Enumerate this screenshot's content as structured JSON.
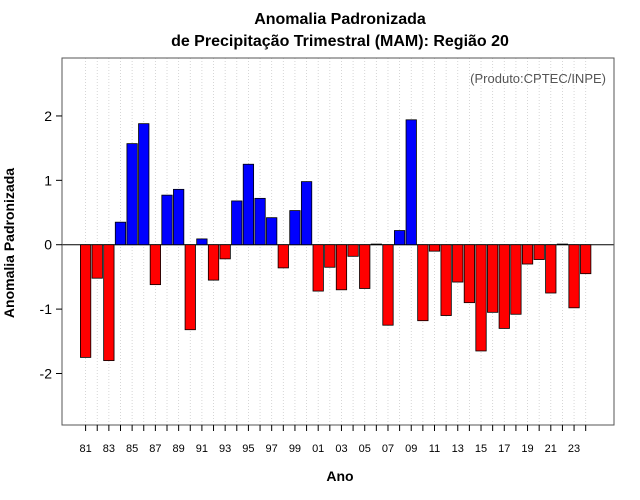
{
  "chart_data": {
    "type": "bar",
    "title_line1": "Anomalia Padronizada",
    "title_line2": "de Precipitação Trimestral (MAM): Região 20",
    "xlabel": "Ano",
    "ylabel": "Anomalia Padronizada",
    "annotation": "(Produto:CPTEC/INPE)",
    "ylim": [
      -2.8,
      2.9
    ],
    "yticks": [
      -2,
      -1,
      0,
      1,
      2
    ],
    "ytick_labels": [
      "-2",
      "-1",
      "0",
      "1",
      "2"
    ],
    "xtick_labels": [
      "81",
      "83",
      "85",
      "87",
      "89",
      "91",
      "93",
      "95",
      "97",
      "99",
      "01",
      "03",
      "05",
      "07",
      "09",
      "11",
      "13",
      "15",
      "17",
      "19",
      "21",
      "23"
    ],
    "categories": [
      "1981",
      "1982",
      "1983",
      "1984",
      "1985",
      "1986",
      "1987",
      "1988",
      "1989",
      "1990",
      "1991",
      "1992",
      "1993",
      "1994",
      "1995",
      "1996",
      "1997",
      "1998",
      "1999",
      "2000",
      "2001",
      "2002",
      "2003",
      "2004",
      "2005",
      "2006",
      "2007",
      "2008",
      "2009",
      "2010",
      "2011",
      "2012",
      "2013",
      "2014",
      "2015",
      "2016",
      "2017",
      "2018",
      "2019",
      "2020",
      "2021",
      "2022",
      "2023",
      "2024"
    ],
    "values": [
      -1.75,
      -0.52,
      -1.8,
      0.35,
      1.57,
      1.88,
      -0.62,
      0.77,
      0.86,
      -1.32,
      0.09,
      -0.55,
      -0.22,
      0.68,
      1.25,
      0.72,
      0.42,
      -0.36,
      0.53,
      0.98,
      -0.72,
      -0.35,
      -0.7,
      -0.18,
      -0.68,
      0.01,
      -1.25,
      0.22,
      1.94,
      -1.18,
      -0.1,
      -1.1,
      -0.58,
      -0.9,
      -1.65,
      -1.05,
      -1.3,
      -1.08,
      -0.3,
      -0.23,
      -0.75,
      0.01,
      -0.98,
      -0.45
    ],
    "colors": {
      "positive": "#0000ff",
      "negative": "#ff0000",
      "grid": "#cccccc",
      "frame": "#555555"
    }
  }
}
